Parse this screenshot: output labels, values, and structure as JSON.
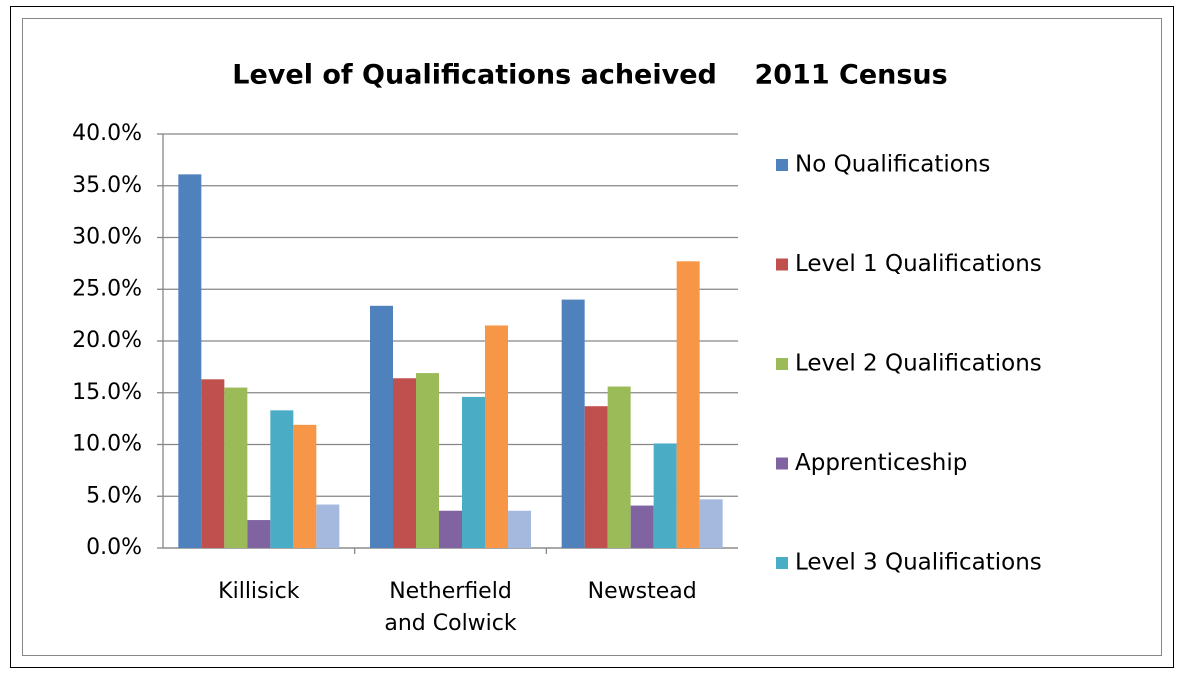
{
  "chart_data": {
    "type": "bar",
    "title": "Level of Qualifications acheived    2011 Census",
    "categories": [
      "Killisick",
      "Netherfield and Colwick",
      "Newstead"
    ],
    "series": [
      {
        "name": "No Qualifications",
        "color": "#4f81bd",
        "values": [
          36.1,
          23.4,
          24.0
        ]
      },
      {
        "name": "Level 1 Qualifications",
        "color": "#c0504d",
        "values": [
          16.3,
          16.4,
          13.7
        ]
      },
      {
        "name": "Level 2 Qualifications",
        "color": "#9bbb59",
        "values": [
          15.5,
          16.9,
          15.6
        ]
      },
      {
        "name": "Apprenticeship",
        "color": "#8064a2",
        "values": [
          2.7,
          3.6,
          4.1
        ]
      },
      {
        "name": "Level 3 Qualifications",
        "color": "#4bacc6",
        "values": [
          13.3,
          14.6,
          10.1
        ]
      },
      {
        "color": "#f79646",
        "values": [
          11.9,
          21.5,
          27.7
        ]
      },
      {
        "color": "#a5b8dd",
        "values": [
          4.2,
          3.6,
          4.7
        ]
      }
    ],
    "ylim": [
      0,
      40
    ],
    "yticks": [
      {
        "value": 0,
        "label": "0.0%"
      },
      {
        "value": 5,
        "label": "5.0%"
      },
      {
        "value": 10,
        "label": "10.0%"
      },
      {
        "value": 15,
        "label": "15.0%"
      },
      {
        "value": 20,
        "label": "20.0%"
      },
      {
        "value": 25,
        "label": "25.0%"
      },
      {
        "value": 30,
        "label": "30.0%"
      },
      {
        "value": 35,
        "label": "35.0%"
      },
      {
        "value": 40,
        "label": "40.0%"
      }
    ],
    "grid": true,
    "legend": "right"
  }
}
